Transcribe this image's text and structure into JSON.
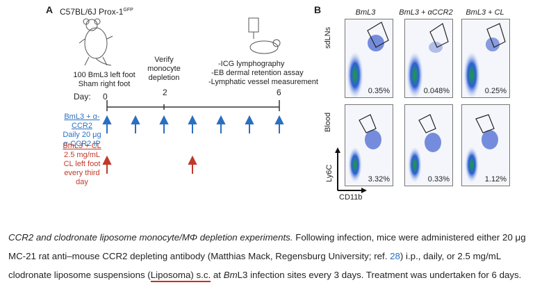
{
  "panel_a": {
    "letter": "A",
    "strain": "C57BL/6J Prox-1",
    "strain_sup": "GFP",
    "infection_label_1": "100 BmL3 left foot",
    "infection_label_2": "Sham right foot",
    "day_label": "Day:",
    "days": [
      "0",
      "2",
      "6"
    ],
    "verify_label_1": "Verify",
    "verify_label_2": "monocyte",
    "verify_label_3": "depletion",
    "assay_1": "-ICG lymphography",
    "assay_2": "-EB dermal retention assay",
    "assay_3": "-Lymphatic vessel measurement",
    "ccr2_title": "BmL3 + α-CCR2",
    "ccr2_line1": "Daily 20 μg",
    "ccr2_line2": "α-CCR2 IP",
    "cl_title": "BmL3 + CL",
    "cl_line1": "2.5 mg/mL",
    "cl_line2": "CL left foot",
    "cl_line3": "every third",
    "cl_line4": "day",
    "colors": {
      "blue": "#2a6fc0",
      "red": "#c0392b"
    }
  },
  "panel_b": {
    "letter": "B",
    "columns": [
      "BmL3",
      "BmL3 + αCCR2",
      "BmL3 + CL"
    ],
    "rows": [
      "sdLNs",
      "Blood"
    ],
    "percentages": [
      [
        "0.35%",
        "0.048%",
        "0.25%"
      ],
      [
        "3.32%",
        "0.33%",
        "1.12%"
      ]
    ],
    "x_axis": "CD11b",
    "y_axis": "Ly6C"
  },
  "caption": {
    "italic_part": "CCR2 and clodronate liposome monocyte/MΦ depletion experiments.",
    "part1": " Following infection, mice were administered either 20 μg MC-21 rat anti–mouse CCR2 depleting antibody (Matthias Mack, Regensburg University; ref. ",
    "ref": "28",
    "part2": ") i.p., daily, or 2.5 mg/mL clodronate liposome suspensions (",
    "highlight": "Liposoma) s.c.",
    "part3": " at ",
    "italic_bm": "Bm",
    "part4": "L3 infection sites every 3 days. Treatment was undertaken for 6 days."
  }
}
